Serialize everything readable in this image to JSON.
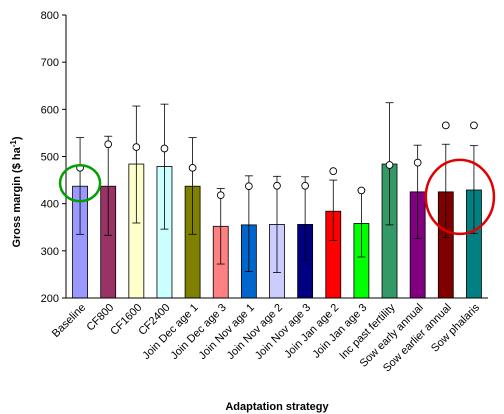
{
  "chart_data": {
    "type": "bar",
    "xlabel": "Adaptation strategy",
    "ylabel": "Gross margin ($ ha-1)",
    "ylabel_parts": {
      "main": "Gross margin ($ ha",
      "sup": "-1",
      "close": ")"
    },
    "ylim": [
      200,
      800
    ],
    "yticks": [
      "200",
      "300",
      "400",
      "500",
      "600",
      "700",
      "800"
    ],
    "grid": false,
    "legend": "none",
    "categories": [
      "Baseline",
      "CF800",
      "CF1600",
      "CF2400",
      "Join Dec age 1",
      "Join Dec age 3",
      "Join Nov age 1",
      "Join Nov age 2",
      "Join Nov age 3",
      "Join Jan age 2",
      "Join Jan age 3",
      "Inc past fertility",
      "Sow early annual",
      "Sow earlier annual",
      "Sow phalaris"
    ],
    "values": [
      437,
      437,
      484,
      479,
      437,
      352,
      355,
      356,
      356,
      384,
      358,
      484,
      425,
      425,
      429
    ],
    "error_upper": [
      540,
      543,
      607,
      611,
      540,
      432,
      459,
      458,
      457,
      450,
      429,
      614,
      524,
      526,
      523
    ],
    "error_lower": [
      335,
      333,
      359,
      346,
      335,
      272,
      256,
      254,
      280,
      322,
      287,
      355,
      326,
      328,
      337
    ],
    "markers": [
      476,
      526,
      520,
      517,
      476,
      418,
      437,
      438,
      438,
      469,
      428,
      482,
      487,
      566,
      566
    ],
    "bar_colors": [
      "#9999ff",
      "#993366",
      "#ffffcc",
      "#ccffff",
      "#808000",
      "#ff8080",
      "#0066cc",
      "#ccccff",
      "#000080",
      "#ff0000",
      "#00ff00",
      "#339966",
      "#800080",
      "#800000",
      "#008080"
    ],
    "highlight_circles": [
      {
        "around": "Baseline",
        "color": "#00a000"
      },
      {
        "around": [
          "Sow earlier annual",
          "Sow phalaris"
        ],
        "color": "#e00000"
      }
    ]
  }
}
